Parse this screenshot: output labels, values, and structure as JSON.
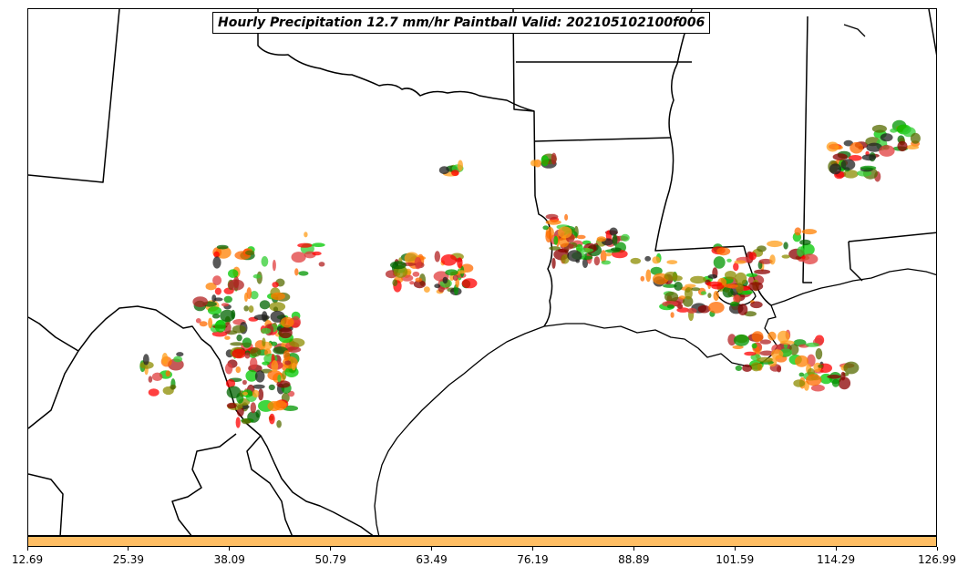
{
  "title": "Hourly Precipitation 12.7 mm/hr Paintball Valid: 202105102100f006",
  "colorbar": {
    "color": "#ffbe64",
    "min": 12.69,
    "max": 126.99,
    "ticks": [
      "12.69",
      "25.39",
      "38.09",
      "50.79",
      "63.49",
      "76.19",
      "88.89",
      "101.59",
      "114.29",
      "126.99"
    ]
  },
  "member_colors": [
    "#ff0000",
    "#ff8000",
    "#ff9e1a",
    "#00c800",
    "#009600",
    "#006400",
    "#556b00",
    "#8b0000",
    "#b22222",
    "#ff6a00",
    "#202020",
    "#8c8c00",
    "#32cd32",
    "#e03c3c"
  ]
}
